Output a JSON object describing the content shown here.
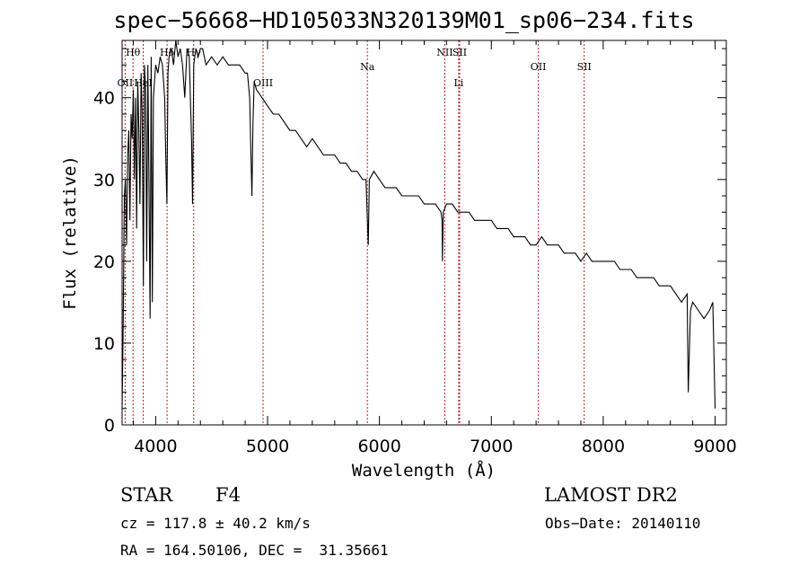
{
  "page": {
    "title": "spec−56668−HD105033N320139M01_sp06−234.fits",
    "object_class": "STAR",
    "subclass": "F4",
    "survey": "LAMOST DR2",
    "redshift_text": "cz = 117.8 ± 40.2 km/s",
    "obs_date": "Obs−Date: 20140110",
    "coords": "RA = 164.50106, DEC =  31.35661"
  },
  "colors": {
    "spectrum": "#000000",
    "line_marker": "#b22222",
    "axes": "#000000"
  },
  "chart_data": {
    "type": "line",
    "title": "spec−56668−HD105033N320139M01_sp06−234.fits",
    "xlabel": "Wavelength (Å)",
    "ylabel": "Flux (relative)",
    "xlim": [
      3700,
      9100
    ],
    "ylim": [
      0,
      47
    ],
    "xticks": [
      4000,
      5000,
      6000,
      7000,
      8000,
      9000
    ],
    "yticks": [
      0,
      10,
      20,
      30,
      40
    ],
    "grid": false,
    "series": [
      {
        "x": [
          3700,
          3710,
          3720,
          3730,
          3740,
          3750,
          3760,
          3770,
          3780,
          3790,
          3800,
          3810,
          3820,
          3830,
          3840,
          3850,
          3860,
          3870,
          3880,
          3890,
          3900,
          3910,
          3920,
          3930,
          3940,
          3950,
          3960,
          3970,
          3980,
          3990,
          4000,
          4020,
          4040,
          4060,
          4080,
          4090,
          4100,
          4110,
          4120,
          4140,
          4160,
          4180,
          4200,
          4220,
          4240,
          4260,
          4280,
          4300,
          4320,
          4330,
          4340,
          4350,
          4360,
          4380,
          4400,
          4420,
          4450,
          4500,
          4550,
          4600,
          4650,
          4700,
          4750,
          4800,
          4820,
          4840,
          4850,
          4860,
          4870,
          4880,
          4900,
          4950,
          5000,
          5050,
          5100,
          5150,
          5200,
          5250,
          5300,
          5350,
          5400,
          5450,
          5500,
          5550,
          5600,
          5650,
          5700,
          5750,
          5800,
          5850,
          5880,
          5890,
          5900,
          5910,
          5950,
          6000,
          6050,
          6100,
          6150,
          6200,
          6250,
          6300,
          6350,
          6400,
          6450,
          6500,
          6550,
          6560,
          6563,
          6570,
          6600,
          6650,
          6700,
          6750,
          6800,
          6850,
          6900,
          6950,
          7000,
          7050,
          7100,
          7150,
          7200,
          7250,
          7300,
          7350,
          7400,
          7450,
          7500,
          7550,
          7600,
          7650,
          7700,
          7750,
          7800,
          7850,
          7900,
          7950,
          8000,
          8050,
          8100,
          8150,
          8200,
          8250,
          8300,
          8350,
          8400,
          8450,
          8500,
          8550,
          8600,
          8650,
          8700,
          8750,
          8760,
          8780,
          8800,
          8850,
          8900,
          8950,
          8980,
          9000
        ],
        "values": [
          2,
          12,
          28,
          30,
          22,
          33,
          36,
          25,
          38,
          35,
          41,
          30,
          40,
          24,
          42,
          36,
          27,
          43,
          38,
          17,
          44,
          41,
          20,
          44,
          30,
          13,
          45,
          15,
          40,
          42,
          44,
          43,
          45,
          44,
          40,
          33,
          27,
          43,
          45,
          46,
          44,
          47,
          45,
          46,
          44,
          40,
          46,
          45,
          35,
          27,
          44,
          45,
          46,
          45,
          46,
          46,
          44,
          45,
          44,
          45,
          44,
          44,
          44,
          43,
          43,
          40,
          34,
          28,
          37,
          42,
          41,
          40,
          39,
          38,
          38,
          37,
          36,
          36,
          35,
          34,
          35,
          34,
          33,
          33,
          33,
          32,
          32,
          31,
          31,
          30,
          30,
          26,
          22,
          30,
          31,
          30,
          29,
          29,
          29,
          28,
          28,
          28,
          28,
          27,
          27,
          27,
          26,
          25,
          20,
          26,
          27,
          27,
          26,
          26,
          26,
          25,
          25,
          25,
          25,
          24,
          24,
          24,
          23,
          23,
          23,
          22,
          22,
          23,
          22,
          22,
          22,
          21,
          21,
          21,
          20,
          21,
          20,
          20,
          20,
          20,
          20,
          19,
          19,
          19,
          18,
          18,
          18,
          18,
          17,
          17,
          17,
          16,
          15,
          16,
          4,
          14,
          15,
          14,
          13,
          14,
          15,
          2
        ]
      }
    ],
    "line_markers": [
      {
        "label": "Hθ",
        "x": 3798
      },
      {
        "label": "OII",
        "x": 3727
      },
      {
        "label": "HeI",
        "x": 3889
      },
      {
        "label": "Hδ",
        "x": 4102
      },
      {
        "label": "Hγ",
        "x": 4340
      },
      {
        "label": "OIII",
        "x": 4960
      },
      {
        "label": "Na",
        "x": 5892
      },
      {
        "label": "NII",
        "x": 6584
      },
      {
        "label": "SII",
        "x": 6717
      },
      {
        "label": "Li",
        "x": 6708
      },
      {
        "label": "OII",
        "x": 7420
      },
      {
        "label": "SII",
        "x": 7830
      }
    ]
  }
}
